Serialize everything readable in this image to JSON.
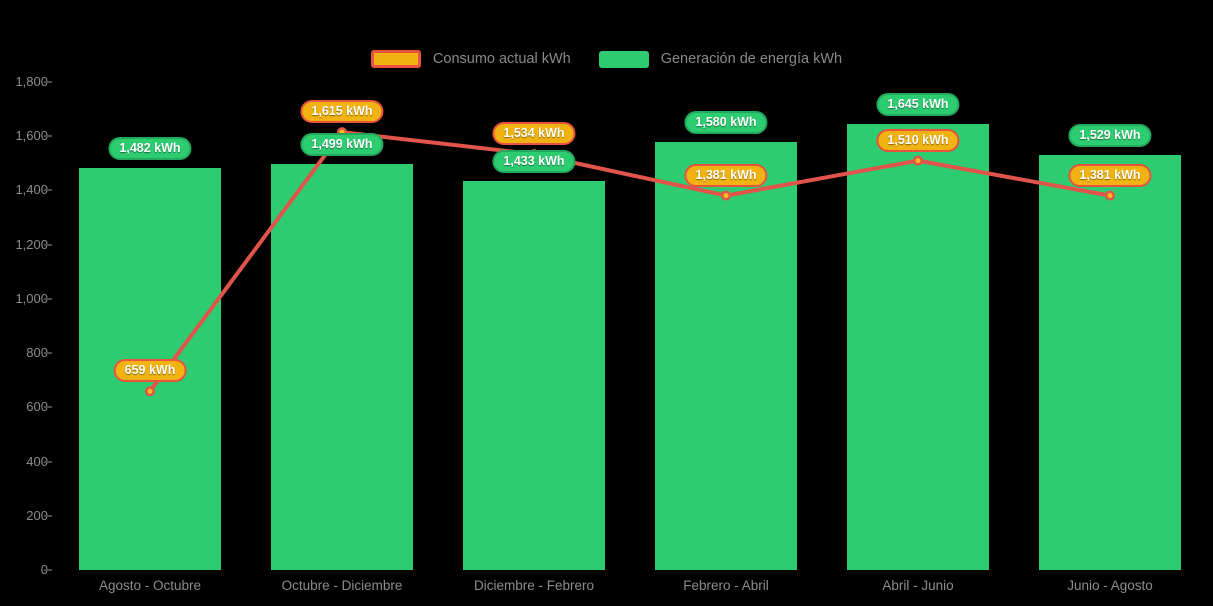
{
  "chart_data": {
    "type": "combo",
    "title": "",
    "categories": [
      "Agosto - Octubre",
      "Octubre - Diciembre",
      "Diciembre - Febrero",
      "Febrero - Abril",
      "Abril - Junio",
      "Junio - Agosto"
    ],
    "series": [
      {
        "name": "Consumo actual kWh",
        "type": "line",
        "values": [
          659,
          1615,
          1534,
          1381,
          1510,
          1381
        ],
        "labels": [
          "659 kWh",
          "1,615 kWh",
          "1,534 kWh",
          "1,381 kWh",
          "1,510 kWh",
          "1,381 kWh"
        ],
        "line_color": "#e1544b",
        "marker_fill": "#f5bb1d",
        "marker_stroke": "#e1544b",
        "label_fill": "#f1b312",
        "label_border": "#e8523f"
      },
      {
        "name": "Generación de energía kWh",
        "type": "bar",
        "values": [
          1482,
          1499,
          1433,
          1580,
          1645,
          1529
        ],
        "labels": [
          "1,482 kWh",
          "1,499 kWh",
          "1,433 kWh",
          "1,580 kWh",
          "1,645 kWh",
          "1,529 kWh"
        ],
        "color": "#2ecc71",
        "label_fill": "#2ecc71",
        "label_border": "#23a85c"
      }
    ],
    "unit": "kWh",
    "ylim": [
      0,
      1800
    ],
    "y_tick_step": 200,
    "y_tick_labels": [
      "0",
      "200",
      "400",
      "600",
      "800",
      "1,000",
      "1,200",
      "1,400",
      "1,600",
      "1,800"
    ],
    "grid": false,
    "legend_position": "top",
    "background": "#000000",
    "axis_text_color": "#8c8c8c"
  }
}
